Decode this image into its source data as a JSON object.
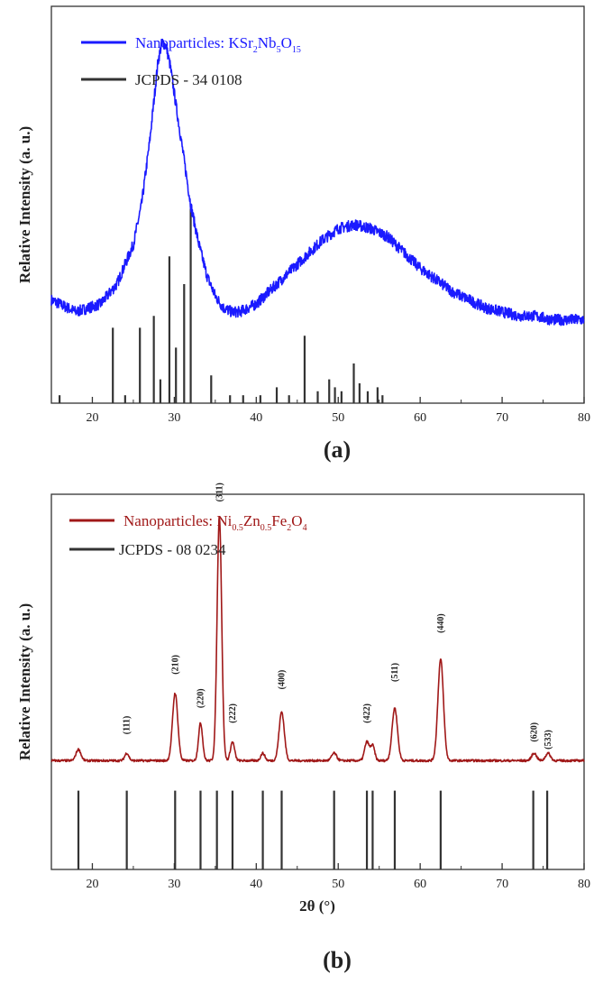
{
  "chart_data": [
    {
      "type": "line",
      "panel_label": "(a)",
      "xlabel": "",
      "ylabel": "Relative Intensity (a. u.)",
      "xlim": [
        15,
        80
      ],
      "xticks": [
        20,
        30,
        40,
        50,
        60,
        70,
        80
      ],
      "legend_position": "top-left",
      "series": [
        {
          "name": "Nanoparticles: KSr2Nb5O15",
          "name_parts": {
            "base": "Nanoparticles: KSr",
            "s1": "2",
            "m1": "Nb",
            "s2": "5",
            "m2": "O",
            "s3": "15"
          },
          "color": "#1a1aff",
          "style": "noisy-line",
          "x": [
            15,
            18,
            21,
            23,
            25,
            26,
            27,
            27.5,
            28,
            28.5,
            29,
            29.5,
            30,
            31,
            32,
            33,
            34,
            35,
            36,
            37,
            38,
            40,
            42,
            44,
            46,
            48,
            50,
            52,
            54,
            56,
            58,
            60,
            62,
            64,
            66,
            68,
            70,
            72,
            74,
            76,
            78,
            80
          ],
          "y": [
            0.26,
            0.23,
            0.25,
            0.3,
            0.4,
            0.5,
            0.66,
            0.76,
            0.86,
            0.91,
            0.9,
            0.85,
            0.78,
            0.64,
            0.5,
            0.4,
            0.32,
            0.27,
            0.24,
            0.23,
            0.23,
            0.25,
            0.29,
            0.33,
            0.37,
            0.41,
            0.44,
            0.45,
            0.44,
            0.42,
            0.38,
            0.34,
            0.31,
            0.28,
            0.26,
            0.24,
            0.23,
            0.22,
            0.22,
            0.21,
            0.21,
            0.21
          ]
        },
        {
          "name": "JCPDS - 34 0108",
          "color": "#333333",
          "style": "sticks",
          "x": [
            16,
            22.5,
            24,
            25.8,
            27.5,
            28.3,
            29.4,
            30.2,
            31.2,
            32.0,
            34.5,
            36.8,
            38.4,
            40.5,
            42.5,
            44,
            45.9,
            47.5,
            48.9,
            49.6,
            50.4,
            51.9,
            52.6,
            53.6,
            54.8,
            55.4
          ],
          "y": [
            0.02,
            0.19,
            0.02,
            0.19,
            0.22,
            0.06,
            0.37,
            0.14,
            0.3,
            0.49,
            0.07,
            0.02,
            0.02,
            0.02,
            0.04,
            0.02,
            0.17,
            0.03,
            0.06,
            0.04,
            0.03,
            0.1,
            0.05,
            0.03,
            0.04,
            0.02
          ]
        }
      ]
    },
    {
      "type": "line",
      "panel_label": "(b)",
      "xlabel": "2θ (°)",
      "ylabel": "Relative Intensity (a. u.)",
      "xlim": [
        15,
        80
      ],
      "xticks": [
        20,
        30,
        40,
        50,
        60,
        70,
        80
      ],
      "legend_position": "top-left",
      "series": [
        {
          "name": "Nanoparticles: Ni0.5Zn0.5Fe2O4",
          "name_parts": {
            "base": "Nanoparticles: Ni",
            "s1": "0.5",
            "m1": "Zn",
            "s2": "0.5",
            "m2": "Fe",
            "s3": "2",
            "m3": "O",
            "s4": "4"
          },
          "color": "#a01818",
          "style": "peaks",
          "baseline": 0.29,
          "peaks": [
            {
              "x": 18.3,
              "h": 0.03,
              "w": 0.3
            },
            {
              "x": 24.2,
              "h": 0.02,
              "w": 0.25
            },
            {
              "x": 30.1,
              "h": 0.18,
              "w": 0.32
            },
            {
              "x": 33.2,
              "h": 0.1,
              "w": 0.25
            },
            {
              "x": 35.5,
              "h": 0.65,
              "w": 0.28
            },
            {
              "x": 37.1,
              "h": 0.05,
              "w": 0.25
            },
            {
              "x": 40.8,
              "h": 0.02,
              "w": 0.25
            },
            {
              "x": 43.1,
              "h": 0.13,
              "w": 0.32
            },
            {
              "x": 49.5,
              "h": 0.02,
              "w": 0.3
            },
            {
              "x": 53.5,
              "h": 0.05,
              "w": 0.28
            },
            {
              "x": 54.2,
              "h": 0.04,
              "w": 0.25
            },
            {
              "x": 56.9,
              "h": 0.14,
              "w": 0.33
            },
            {
              "x": 62.5,
              "h": 0.27,
              "w": 0.34
            },
            {
              "x": 73.9,
              "h": 0.02,
              "w": 0.3
            },
            {
              "x": 75.6,
              "h": 0.02,
              "w": 0.3
            }
          ]
        },
        {
          "name": "JCPDS - 08 0234",
          "color": "#333333",
          "style": "sticks",
          "x": [
            18.3,
            24.2,
            30.1,
            33.2,
            35.2,
            37.1,
            40.8,
            43.1,
            49.5,
            53.5,
            54.2,
            56.9,
            62.5,
            73.8,
            75.5
          ],
          "y": [
            0.21,
            0.21,
            0.21,
            0.21,
            0.21,
            0.21,
            0.21,
            0.21,
            0.21,
            0.21,
            0.21,
            0.21,
            0.21,
            0.21,
            0.21
          ]
        }
      ],
      "annotations": [
        {
          "text": "(111)",
          "x": 24.2,
          "y": 0.36
        },
        {
          "text": "(210)",
          "x": 30.1,
          "y": 0.52
        },
        {
          "text": "(220)",
          "x": 33.2,
          "y": 0.43
        },
        {
          "text": "(311)",
          "x": 35.5,
          "y": 0.98
        },
        {
          "text": "(222)",
          "x": 37.1,
          "y": 0.39
        },
        {
          "text": "(400)",
          "x": 43.1,
          "y": 0.48
        },
        {
          "text": "(422)",
          "x": 53.5,
          "y": 0.39
        },
        {
          "text": "(511)",
          "x": 56.9,
          "y": 0.5
        },
        {
          "text": "(440)",
          "x": 62.5,
          "y": 0.63
        },
        {
          "text": "(620)",
          "x": 73.9,
          "y": 0.34
        },
        {
          "text": "(533)",
          "x": 75.6,
          "y": 0.32
        }
      ]
    }
  ]
}
